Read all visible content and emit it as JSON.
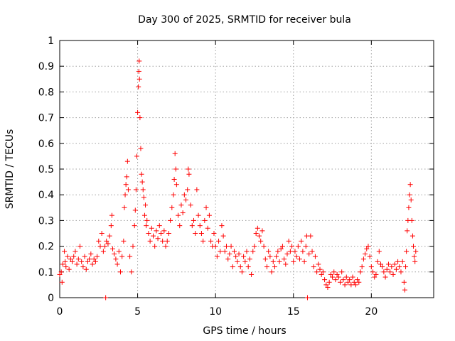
{
  "chart_data": {
    "type": "scatter",
    "title": "Day 300 of 2025, SRMTID for receiver bula",
    "xlabel": "GPS time / hours",
    "ylabel": "SRMTID / TECUs",
    "xlim": [
      0,
      24
    ],
    "ylim": [
      0,
      1
    ],
    "xticks": [
      0,
      5,
      10,
      15,
      20
    ],
    "xtick_labels": [
      "0",
      "5",
      "10",
      "15",
      "20"
    ],
    "yticks": [
      0,
      0.1,
      0.2,
      0.3,
      0.4,
      0.5,
      0.6,
      0.7,
      0.8,
      0.9,
      1
    ],
    "ytick_labels": [
      "0",
      "0.1",
      "0.2",
      "0.3",
      "0.4",
      "0.5",
      "0.6",
      "0.7",
      "0.8",
      "0.9",
      "1"
    ],
    "grid": true,
    "marker": "+",
    "series": [
      {
        "name": "SRMTID",
        "color": "#ff0000",
        "points": [
          [
            0.0,
            0.09
          ],
          [
            0.1,
            0.1
          ],
          [
            0.15,
            0.06
          ],
          [
            0.2,
            0.13
          ],
          [
            0.3,
            0.18
          ],
          [
            0.35,
            0.14
          ],
          [
            0.4,
            0.12
          ],
          [
            0.5,
            0.16
          ],
          [
            0.6,
            0.11
          ],
          [
            0.7,
            0.15
          ],
          [
            0.8,
            0.14
          ],
          [
            0.9,
            0.16
          ],
          [
            1.0,
            0.18
          ],
          [
            1.1,
            0.13
          ],
          [
            1.2,
            0.15
          ],
          [
            1.3,
            0.2
          ],
          [
            1.4,
            0.14
          ],
          [
            1.5,
            0.12
          ],
          [
            1.6,
            0.16
          ],
          [
            1.7,
            0.11
          ],
          [
            1.8,
            0.14
          ],
          [
            1.9,
            0.15
          ],
          [
            2.0,
            0.17
          ],
          [
            2.1,
            0.13
          ],
          [
            2.2,
            0.15
          ],
          [
            2.3,
            0.14
          ],
          [
            2.4,
            0.16
          ],
          [
            2.5,
            0.22
          ],
          [
            2.6,
            0.2
          ],
          [
            2.7,
            0.25
          ],
          [
            2.8,
            0.18
          ],
          [
            2.9,
            0.2
          ],
          [
            2.95,
            0.0
          ],
          [
            3.0,
            0.22
          ],
          [
            3.1,
            0.21
          ],
          [
            3.2,
            0.24
          ],
          [
            3.3,
            0.28
          ],
          [
            3.35,
            0.32
          ],
          [
            3.4,
            0.19
          ],
          [
            3.5,
            0.17
          ],
          [
            3.6,
            0.15
          ],
          [
            3.7,
            0.13
          ],
          [
            3.8,
            0.18
          ],
          [
            3.9,
            0.1
          ],
          [
            4.0,
            0.16
          ],
          [
            4.1,
            0.22
          ],
          [
            4.15,
            0.35
          ],
          [
            4.2,
            0.4
          ],
          [
            4.25,
            0.44
          ],
          [
            4.3,
            0.47
          ],
          [
            4.35,
            0.53
          ],
          [
            4.4,
            0.42
          ],
          [
            4.5,
            0.16
          ],
          [
            4.6,
            0.1
          ],
          [
            4.7,
            0.2
          ],
          [
            4.8,
            0.28
          ],
          [
            4.85,
            0.34
          ],
          [
            4.9,
            0.42
          ],
          [
            4.95,
            0.55
          ],
          [
            5.0,
            0.72
          ],
          [
            5.05,
            0.82
          ],
          [
            5.08,
            0.88
          ],
          [
            5.1,
            0.92
          ],
          [
            5.12,
            0.85
          ],
          [
            5.15,
            0.7
          ],
          [
            5.2,
            0.58
          ],
          [
            5.25,
            0.48
          ],
          [
            5.3,
            0.45
          ],
          [
            5.35,
            0.42
          ],
          [
            5.4,
            0.39
          ],
          [
            5.45,
            0.32
          ],
          [
            5.5,
            0.36
          ],
          [
            5.55,
            0.28
          ],
          [
            5.6,
            0.3
          ],
          [
            5.7,
            0.25
          ],
          [
            5.8,
            0.22
          ],
          [
            5.9,
            0.27
          ],
          [
            6.0,
            0.24
          ],
          [
            6.1,
            0.2
          ],
          [
            6.2,
            0.26
          ],
          [
            6.3,
            0.23
          ],
          [
            6.4,
            0.28
          ],
          [
            6.5,
            0.25
          ],
          [
            6.6,
            0.22
          ],
          [
            6.7,
            0.26
          ],
          [
            6.8,
            0.2
          ],
          [
            6.9,
            0.22
          ],
          [
            7.0,
            0.25
          ],
          [
            7.1,
            0.3
          ],
          [
            7.2,
            0.35
          ],
          [
            7.3,
            0.4
          ],
          [
            7.35,
            0.46
          ],
          [
            7.4,
            0.56
          ],
          [
            7.45,
            0.5
          ],
          [
            7.5,
            0.44
          ],
          [
            7.6,
            0.32
          ],
          [
            7.7,
            0.28
          ],
          [
            7.8,
            0.36
          ],
          [
            7.9,
            0.33
          ],
          [
            8.0,
            0.4
          ],
          [
            8.1,
            0.38
          ],
          [
            8.2,
            0.42
          ],
          [
            8.25,
            0.5
          ],
          [
            8.3,
            0.48
          ],
          [
            8.4,
            0.36
          ],
          [
            8.5,
            0.28
          ],
          [
            8.6,
            0.3
          ],
          [
            8.7,
            0.25
          ],
          [
            8.8,
            0.42
          ],
          [
            8.9,
            0.32
          ],
          [
            9.0,
            0.28
          ],
          [
            9.1,
            0.25
          ],
          [
            9.2,
            0.22
          ],
          [
            9.3,
            0.3
          ],
          [
            9.4,
            0.35
          ],
          [
            9.5,
            0.27
          ],
          [
            9.6,
            0.32
          ],
          [
            9.7,
            0.22
          ],
          [
            9.8,
            0.2
          ],
          [
            9.9,
            0.25
          ],
          [
            10.0,
            0.2
          ],
          [
            10.1,
            0.16
          ],
          [
            10.2,
            0.22
          ],
          [
            10.3,
            0.18
          ],
          [
            10.4,
            0.28
          ],
          [
            10.5,
            0.24
          ],
          [
            10.6,
            0.18
          ],
          [
            10.7,
            0.2
          ],
          [
            10.8,
            0.15
          ],
          [
            10.9,
            0.17
          ],
          [
            11.0,
            0.2
          ],
          [
            11.1,
            0.12
          ],
          [
            11.2,
            0.18
          ],
          [
            11.3,
            0.16
          ],
          [
            11.4,
            0.14
          ],
          [
            11.5,
            0.17
          ],
          [
            11.6,
            0.12
          ],
          [
            11.7,
            0.1
          ],
          [
            11.8,
            0.16
          ],
          [
            11.9,
            0.14
          ],
          [
            12.0,
            0.18
          ],
          [
            12.1,
            0.12
          ],
          [
            12.2,
            0.15
          ],
          [
            12.3,
            0.09
          ],
          [
            12.4,
            0.18
          ],
          [
            12.5,
            0.2
          ],
          [
            12.6,
            0.25
          ],
          [
            12.7,
            0.27
          ],
          [
            12.8,
            0.24
          ],
          [
            12.9,
            0.22
          ],
          [
            13.0,
            0.26
          ],
          [
            13.1,
            0.2
          ],
          [
            13.2,
            0.15
          ],
          [
            13.3,
            0.12
          ],
          [
            13.4,
            0.18
          ],
          [
            13.5,
            0.16
          ],
          [
            13.6,
            0.1
          ],
          [
            13.7,
            0.14
          ],
          [
            13.8,
            0.12
          ],
          [
            13.9,
            0.16
          ],
          [
            14.0,
            0.18
          ],
          [
            14.1,
            0.14
          ],
          [
            14.2,
            0.19
          ],
          [
            14.3,
            0.2
          ],
          [
            14.4,
            0.15
          ],
          [
            14.5,
            0.13
          ],
          [
            14.6,
            0.17
          ],
          [
            14.7,
            0.22
          ],
          [
            14.8,
            0.18
          ],
          [
            14.9,
            0.2
          ],
          [
            15.0,
            0.14
          ],
          [
            15.1,
            0.18
          ],
          [
            15.2,
            0.16
          ],
          [
            15.3,
            0.2
          ],
          [
            15.4,
            0.15
          ],
          [
            15.5,
            0.22
          ],
          [
            15.6,
            0.18
          ],
          [
            15.7,
            0.14
          ],
          [
            15.8,
            0.2
          ],
          [
            15.85,
            0.24
          ],
          [
            15.9,
            0.0
          ],
          [
            16.0,
            0.17
          ],
          [
            16.1,
            0.24
          ],
          [
            16.2,
            0.18
          ],
          [
            16.3,
            0.12
          ],
          [
            16.4,
            0.16
          ],
          [
            16.5,
            0.1
          ],
          [
            16.6,
            0.13
          ],
          [
            16.7,
            0.11
          ],
          [
            16.8,
            0.09
          ],
          [
            16.9,
            0.1
          ],
          [
            17.0,
            0.07
          ],
          [
            17.1,
            0.05
          ],
          [
            17.2,
            0.04
          ],
          [
            17.3,
            0.06
          ],
          [
            17.4,
            0.09
          ],
          [
            17.5,
            0.08
          ],
          [
            17.6,
            0.1
          ],
          [
            17.7,
            0.07
          ],
          [
            17.8,
            0.09
          ],
          [
            17.9,
            0.08
          ],
          [
            18.0,
            0.06
          ],
          [
            18.1,
            0.1
          ],
          [
            18.2,
            0.07
          ],
          [
            18.3,
            0.05
          ],
          [
            18.4,
            0.08
          ],
          [
            18.5,
            0.06
          ],
          [
            18.6,
            0.07
          ],
          [
            18.7,
            0.05
          ],
          [
            18.8,
            0.08
          ],
          [
            18.9,
            0.06
          ],
          [
            19.0,
            0.05
          ],
          [
            19.1,
            0.07
          ],
          [
            19.2,
            0.06
          ],
          [
            19.3,
            0.1
          ],
          [
            19.4,
            0.12
          ],
          [
            19.5,
            0.15
          ],
          [
            19.6,
            0.17
          ],
          [
            19.7,
            0.19
          ],
          [
            19.8,
            0.2
          ],
          [
            19.9,
            0.16
          ],
          [
            20.0,
            0.12
          ],
          [
            20.1,
            0.1
          ],
          [
            20.2,
            0.08
          ],
          [
            20.3,
            0.09
          ],
          [
            20.4,
            0.14
          ],
          [
            20.5,
            0.18
          ],
          [
            20.6,
            0.13
          ],
          [
            20.7,
            0.12
          ],
          [
            20.8,
            0.1
          ],
          [
            20.9,
            0.08
          ],
          [
            21.0,
            0.11
          ],
          [
            21.1,
            0.13
          ],
          [
            21.2,
            0.1
          ],
          [
            21.3,
            0.12
          ],
          [
            21.4,
            0.09
          ],
          [
            21.5,
            0.13
          ],
          [
            21.6,
            0.11
          ],
          [
            21.7,
            0.14
          ],
          [
            21.8,
            0.12
          ],
          [
            21.9,
            0.1
          ],
          [
            22.0,
            0.14
          ],
          [
            22.1,
            0.06
          ],
          [
            22.15,
            0.03
          ],
          [
            22.2,
            0.12
          ],
          [
            22.25,
            0.18
          ],
          [
            22.3,
            0.26
          ],
          [
            22.35,
            0.3
          ],
          [
            22.4,
            0.35
          ],
          [
            22.45,
            0.4
          ],
          [
            22.5,
            0.44
          ],
          [
            22.55,
            0.38
          ],
          [
            22.6,
            0.3
          ],
          [
            22.65,
            0.24
          ],
          [
            22.7,
            0.2
          ],
          [
            22.75,
            0.16
          ],
          [
            22.8,
            0.14
          ],
          [
            22.85,
            0.18
          ]
        ]
      }
    ]
  }
}
